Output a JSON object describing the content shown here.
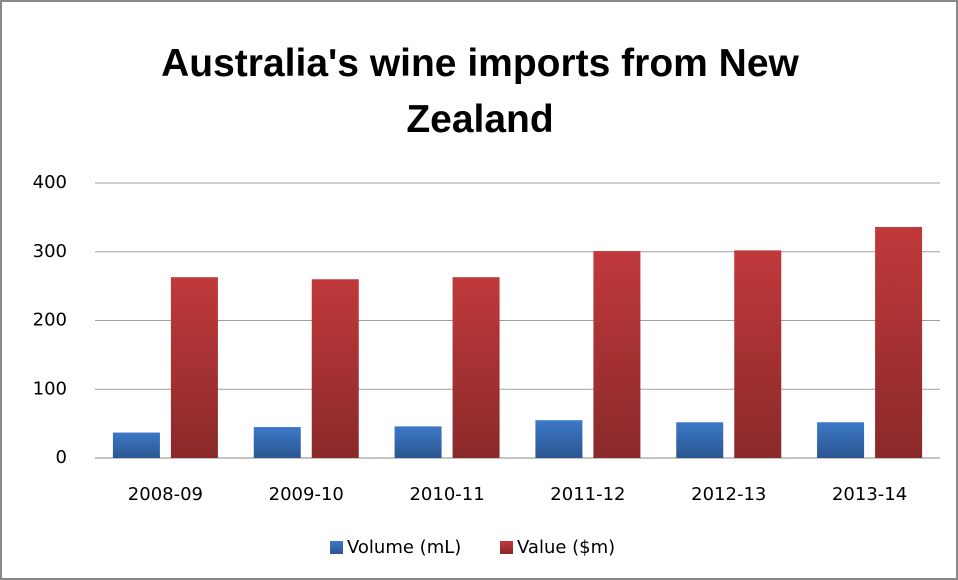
{
  "chart_data": {
    "type": "bar",
    "title": "Australia's wine imports from New Zealand",
    "categories": [
      "2008-09",
      "2009-10",
      "2010-11",
      "2011-12",
      "2012-13",
      "2013-14"
    ],
    "series": [
      {
        "name": "Volume (mL)",
        "color": "#3c78c8",
        "values": [
          37,
          45,
          46,
          55,
          52,
          52
        ]
      },
      {
        "name": "Value ($m)",
        "color": "#c0393b",
        "values": [
          263,
          260,
          263,
          301,
          302,
          336
        ]
      }
    ],
    "ylim": [
      0,
      400
    ],
    "yticks": [
      0,
      100,
      200,
      300,
      400
    ],
    "grid": true,
    "legend": "bottom"
  }
}
